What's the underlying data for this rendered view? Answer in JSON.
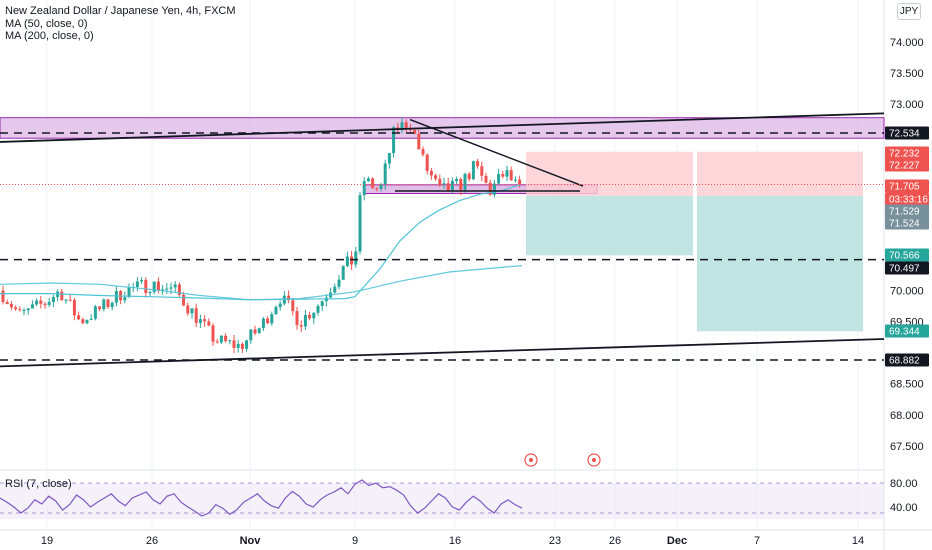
{
  "header": {
    "symbol": "New Zealand Dollar / Japanese Yen, 4h, FXCM",
    "ma50": "MA (50, close, 0)",
    "ma200": "MA (200, close, 0)",
    "currency": "JPY"
  },
  "rsi": {
    "label": "RSI (7, close)",
    "ticks": [
      "80.00",
      "40.00"
    ]
  },
  "colors": {
    "bull": "#26a69a",
    "bear": "#ef5350",
    "ma": "#4fc3d6",
    "zone": "#9c27b0",
    "zone_fill": "#e1bee7",
    "loss": "#ffcdd2",
    "profit": "#b2dfdb",
    "rsi": "#7e57c2"
  },
  "chart_data": [
    {
      "type": "candlestick",
      "title": "New Zealand Dollar / Japanese Yen, 4h, FXCM",
      "ylim": [
        67.2,
        74.3
      ],
      "y_ticks": [
        "74.000",
        "73.500",
        "73.000",
        "70.000",
        "69.500",
        "68.500",
        "68.000",
        "67.500"
      ],
      "x_ticks": [
        "19",
        "26",
        "Nov",
        "9",
        "16",
        "23",
        "26",
        "Dec",
        "7",
        "14"
      ],
      "series": [
        {
          "name": "MA (50, close, 0)",
          "points": [
            [
              0,
              69.95
            ],
            [
              50,
              69.95
            ],
            [
              100,
              69.92
            ],
            [
              150,
              69.9
            ],
            [
              200,
              69.88
            ],
            [
              250,
              69.85
            ],
            [
              300,
              69.86
            ],
            [
              345,
              69.87
            ],
            [
              355,
              69.9
            ],
            [
              380,
              70.35
            ],
            [
              400,
              70.8
            ],
            [
              420,
              71.1
            ],
            [
              440,
              71.3
            ],
            [
              460,
              71.45
            ],
            [
              480,
              71.55
            ],
            [
              500,
              71.6
            ],
            [
              520,
              71.7
            ]
          ]
        },
        {
          "name": "MA (200, close, 0)",
          "points": [
            [
              0,
              70.1
            ],
            [
              50,
              70.12
            ],
            [
              100,
              70.1
            ],
            [
              150,
              70.02
            ],
            [
              200,
              69.92
            ],
            [
              250,
              69.85
            ],
            [
              300,
              69.87
            ],
            [
              355,
              69.98
            ],
            [
              400,
              70.15
            ],
            [
              450,
              70.3
            ],
            [
              522,
              70.4
            ]
          ]
        }
      ],
      "levels": [
        {
          "label": "72.534",
          "value": 72.534,
          "tag_color": "#131722"
        },
        {
          "label": "70.497",
          "value": 70.497,
          "tag_color": "#131722"
        },
        {
          "label": "68.882",
          "value": 68.882,
          "tag_color": "#131722"
        },
        {
          "label": "72.232",
          "value": 72.232,
          "tag_color": "#ef5350"
        },
        {
          "label": "72.227",
          "value": 72.227,
          "tag_color": "#ef5350"
        },
        {
          "label": "71.705",
          "value": 71.705,
          "tag_color": "#ef5350"
        },
        {
          "label": "03:33:16",
          "value": 71.6,
          "tag_color": "#ef5350"
        },
        {
          "label": "71.529",
          "value": 71.529,
          "tag_color": "#78909c"
        },
        {
          "label": "71.524",
          "value": 71.524,
          "tag_color": "#78909c"
        },
        {
          "label": "70.566",
          "value": 70.566,
          "tag_color": "#26a69a"
        },
        {
          "label": "69.344",
          "value": 69.344,
          "tag_color": "#26a69a"
        }
      ],
      "zones": [
        {
          "name": "resistance-zone",
          "y_range": [
            72.45,
            72.78
          ]
        },
        {
          "name": "support-zone",
          "y_range": [
            71.56,
            71.7
          ]
        }
      ],
      "positions": [
        {
          "stop": 72.232,
          "entry": 71.524,
          "target": 70.566
        },
        {
          "stop": 72.232,
          "entry": 71.524,
          "target": 69.344
        }
      ]
    },
    {
      "type": "line",
      "title": "RSI (7, close)",
      "ylim": [
        20,
        100
      ],
      "series": [
        {
          "name": "RSI (7, close)",
          "values": [
            55,
            48,
            40,
            30,
            38,
            52,
            45,
            58,
            50,
            35,
            44,
            60,
            52,
            40,
            48,
            55,
            62,
            50,
            42,
            55,
            60,
            65,
            52,
            45,
            58,
            62,
            48,
            40,
            33,
            25,
            30,
            44,
            38,
            28,
            35,
            48,
            55,
            62,
            50,
            42,
            38,
            55,
            66,
            58,
            45,
            40,
            52,
            60,
            65,
            72,
            62,
            78,
            85,
            76,
            80,
            72,
            74,
            68,
            60,
            42,
            30,
            38,
            50,
            62,
            55,
            40,
            35,
            48,
            58,
            50,
            38,
            30,
            45,
            52,
            44,
            38
          ]
        }
      ]
    }
  ]
}
